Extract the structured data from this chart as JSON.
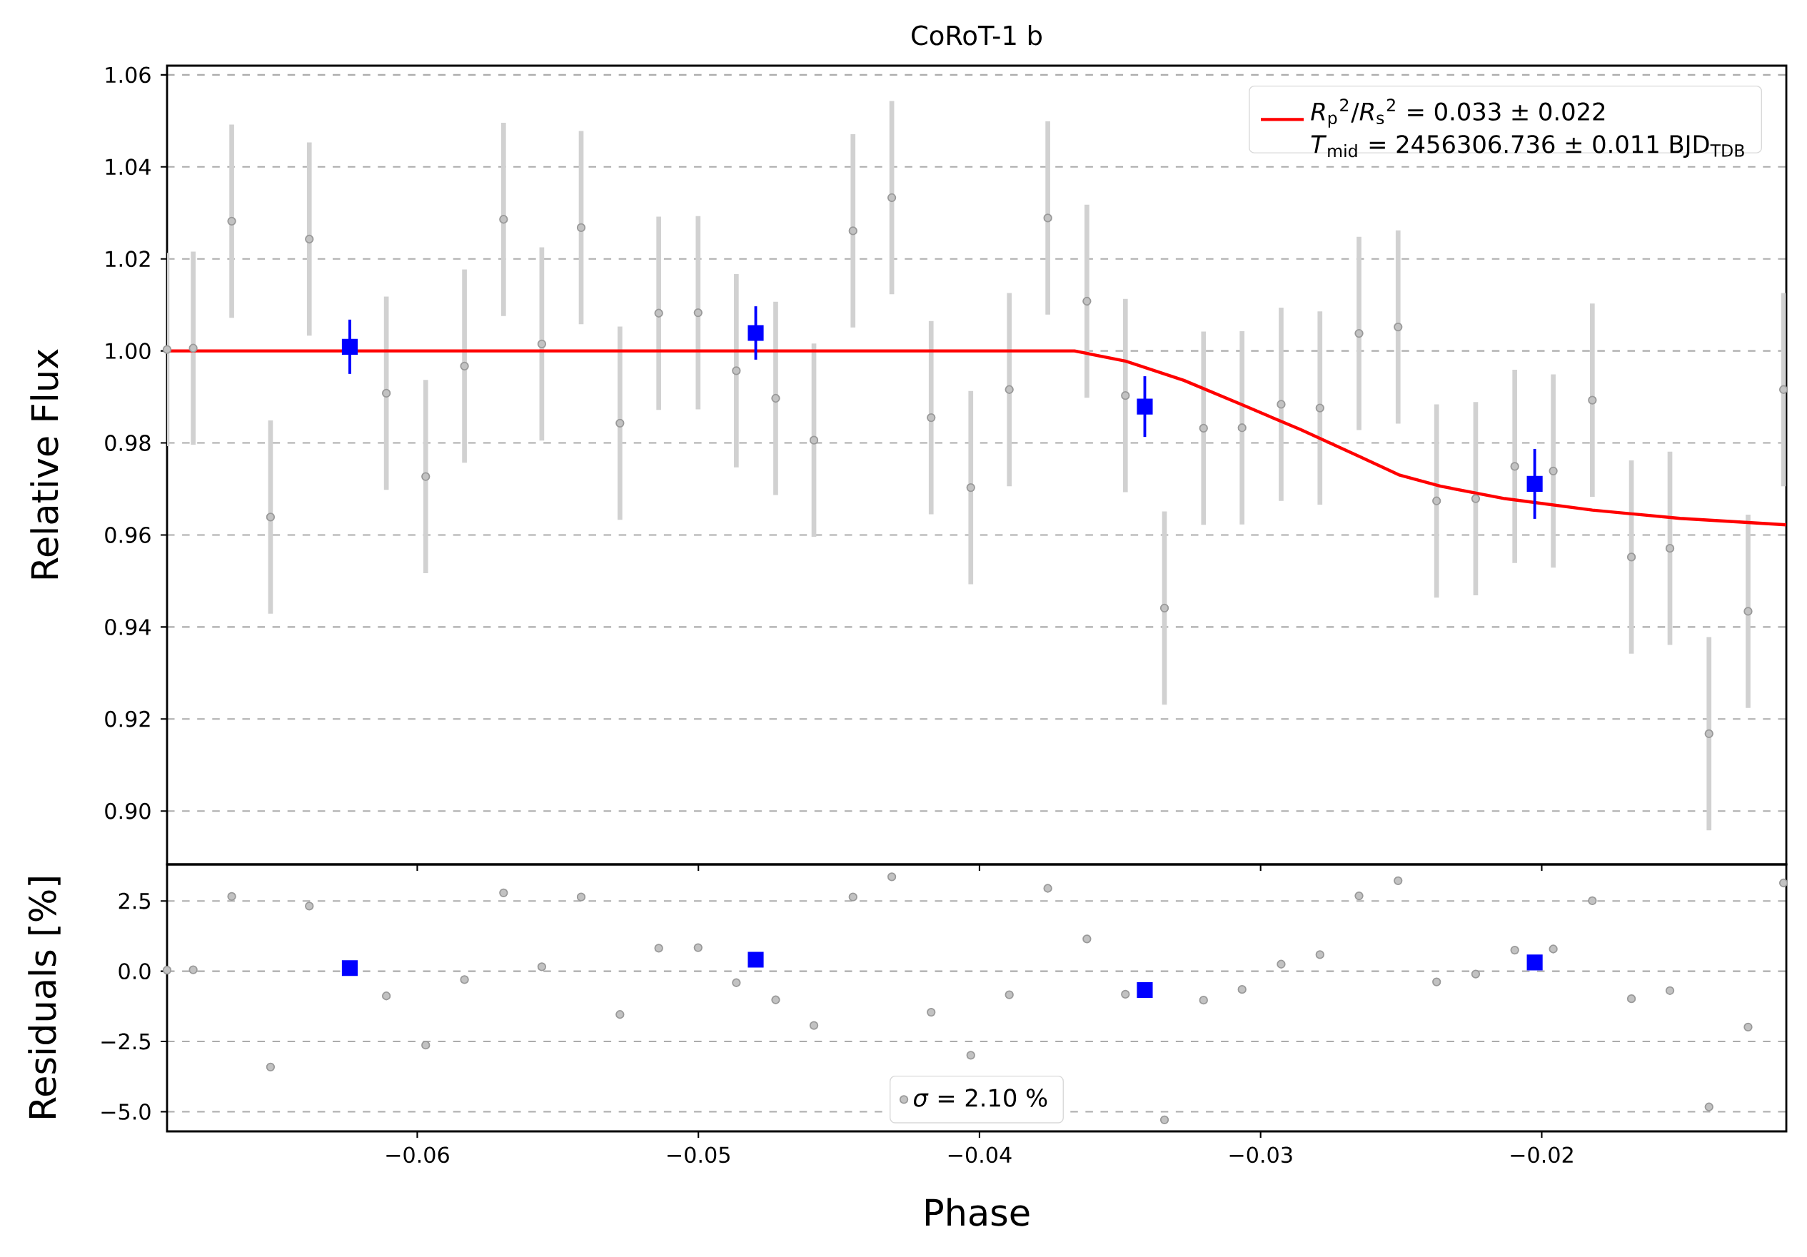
{
  "chart_data": [
    {
      "type": "scatter",
      "title": "CoRoT-1 b",
      "ylabel": "Relative Flux",
      "xlim": [
        -0.0689,
        -0.0113
      ],
      "ylim": [
        0.8884,
        1.062
      ],
      "xticks": [
        {
          "value": -0.06,
          "label": null
        },
        {
          "value": -0.05,
          "label": null
        },
        {
          "value": -0.04,
          "label": null
        },
        {
          "value": -0.03,
          "label": null
        },
        {
          "value": -0.02,
          "label": null
        }
      ],
      "yticks": [
        {
          "value": 0.9,
          "label": "0.90"
        },
        0.92,
        0.94,
        0.96,
        0.98,
        {
          "value": 1.0,
          "label": "1.00"
        },
        1.02,
        1.04,
        1.06
      ],
      "tick_labels": "y",
      "grid": "y",
      "legend": "top right",
      "annotations": [
        "*T*$_{mid}$ = 2456306.736 ± 0.011 BJD$_{TDB}$"
      ],
      "series": [
        {
          "color": "#999999",
          "marker": "circle",
          "x": [
            -0.0689,
            -0.06797,
            -0.0666,
            -0.06522,
            -0.06384,
            -0.06246,
            -0.0611,
            -0.0597,
            -0.05832,
            -0.05693,
            -0.05557,
            -0.05417,
            -0.05279,
            -0.05141,
            -0.05001,
            -0.04865,
            -0.04725,
            -0.04589,
            -0.0445,
            -0.04312,
            -0.04172,
            -0.04031,
            -0.03894,
            -0.03757,
            -0.03618,
            -0.03481,
            -0.03342,
            -0.03203,
            -0.03066,
            -0.02927,
            -0.02789,
            -0.0265,
            -0.02511,
            -0.02374,
            -0.02235,
            -0.02096,
            -0.01959,
            -0.0182,
            -0.01681,
            -0.01544,
            -0.01405,
            -0.01266,
            -0.0114
          ],
          "values": [
            1.0003,
            1.0006,
            1.0282,
            0.9639,
            1.0243,
            null,
            0.9908,
            0.9727,
            0.9967,
            1.0286,
            1.0015,
            1.0268,
            0.9843,
            1.0082,
            1.0083,
            0.9957,
            0.9897,
            0.9806,
            1.0261,
            1.0333,
            0.9855,
            0.9703,
            0.9916,
            1.0289,
            1.0108,
            0.9903,
            0.9441,
            0.9832,
            0.9833,
            0.9884,
            0.9876,
            1.0038,
            1.0052,
            0.9674,
            0.9679,
            0.9749,
            0.9739,
            0.9893,
            0.9552,
            0.9571,
            0.9168,
            0.9434,
            0.9916
          ],
          "errors": [
            0.021,
            0.021,
            0.021,
            0.021,
            0.021,
            null,
            0.021,
            0.021,
            0.021,
            0.021,
            0.021,
            0.021,
            0.021,
            0.021,
            0.021,
            0.021,
            0.021,
            0.021,
            0.021,
            0.021,
            0.021,
            0.021,
            0.021,
            0.021,
            0.021,
            0.021,
            0.021,
            0.021,
            0.021,
            0.021,
            0.021,
            0.021,
            0.021,
            0.021,
            0.021,
            0.021,
            0.021,
            0.021,
            0.021,
            0.021,
            0.021,
            0.021,
            0.021
          ]
        },
        {
          "type": "line",
          "name": "*R*$_{p}$$^{2}$/*R*$_{s}$$^{2}$ = 0.033 ± 0.022",
          "color": "#ff0000",
          "x": [
            -0.0689,
            -0.03662,
            -0.03481,
            -0.03273,
            -0.03066,
            -0.02858,
            -0.0265,
            -0.02505,
            -0.0236,
            -0.02131,
            -0.0182,
            -0.01508,
            -0.0113
          ],
          "values": [
            1.0,
            1.0,
            0.9978,
            0.9936,
            0.9883,
            0.9829,
            0.9771,
            0.973,
            0.9706,
            0.9679,
            0.9654,
            0.9636,
            0.9622
          ]
        },
        {
          "color": "#0000ff",
          "marker": "square",
          "x": [
            -0.0624,
            -0.04796,
            -0.03412,
            -0.02025
          ],
          "values": [
            1.0009,
            1.0039,
            0.9879,
            0.9711
          ],
          "errors": [
            0.0059,
            0.0058,
            0.0066,
            0.0076
          ]
        }
      ]
    },
    {
      "type": "scatter",
      "xlabel": "Phase",
      "ylabel": "Residuals [%]",
      "xlim": [
        -0.0689,
        -0.0113
      ],
      "ylim": [
        -5.7,
        3.8
      ],
      "xticks": [
        {
          "value": -0.06,
          "label": "−0.06"
        },
        {
          "value": -0.05,
          "label": "−0.05"
        },
        {
          "value": -0.04,
          "label": "−0.04"
        },
        {
          "value": -0.03,
          "label": "−0.03"
        },
        {
          "value": -0.02,
          "label": "−0.02"
        }
      ],
      "yticks": [
        {
          "value": -5.0,
          "label": "−5.0"
        },
        {
          "value": -2.5,
          "label": "−2.5"
        },
        {
          "value": 0,
          "label": "0.0"
        },
        2.5
      ],
      "grid": "y",
      "legend": "bottom",
      "series": [
        {
          "name": "*σ* = 2.10 %",
          "color": "#999999",
          "marker": "circle",
          "x": [
            -0.0689,
            -0.06797,
            -0.0666,
            -0.06522,
            -0.06384,
            -0.06246,
            -0.0611,
            -0.0597,
            -0.05832,
            -0.05693,
            -0.05557,
            -0.05417,
            -0.05279,
            -0.05141,
            -0.05001,
            -0.04865,
            -0.04725,
            -0.04589,
            -0.0445,
            -0.04312,
            -0.04172,
            -0.04031,
            -0.03894,
            -0.03757,
            -0.03618,
            -0.03481,
            -0.03342,
            -0.03203,
            -0.03066,
            -0.02927,
            -0.02789,
            -0.0265,
            -0.02511,
            -0.02374,
            -0.02235,
            -0.02096,
            -0.01959,
            -0.0182,
            -0.01681,
            -0.01544,
            -0.01405,
            -0.01266,
            -0.0114
          ],
          "values": [
            0.04,
            0.05,
            2.66,
            -3.41,
            2.32,
            null,
            -0.88,
            -2.63,
            -0.3,
            2.79,
            0.16,
            2.64,
            -1.54,
            0.82,
            0.84,
            -0.41,
            -1.02,
            -1.93,
            2.64,
            3.36,
            -1.46,
            -2.99,
            -0.84,
            2.95,
            1.15,
            -0.82,
            -5.29,
            -1.03,
            -0.65,
            0.25,
            0.59,
            2.68,
            3.22,
            -0.38,
            -0.1,
            0.75,
            0.79,
            2.51,
            -0.98,
            -0.69,
            -4.83,
            -1.99,
            3.14
          ]
        },
        {
          "color": "#0000ff",
          "marker": "square",
          "x": [
            -0.0624,
            -0.04796,
            -0.03412,
            -0.02025
          ],
          "values": [
            0.11,
            0.41,
            -0.67,
            0.31
          ]
        }
      ]
    }
  ]
}
